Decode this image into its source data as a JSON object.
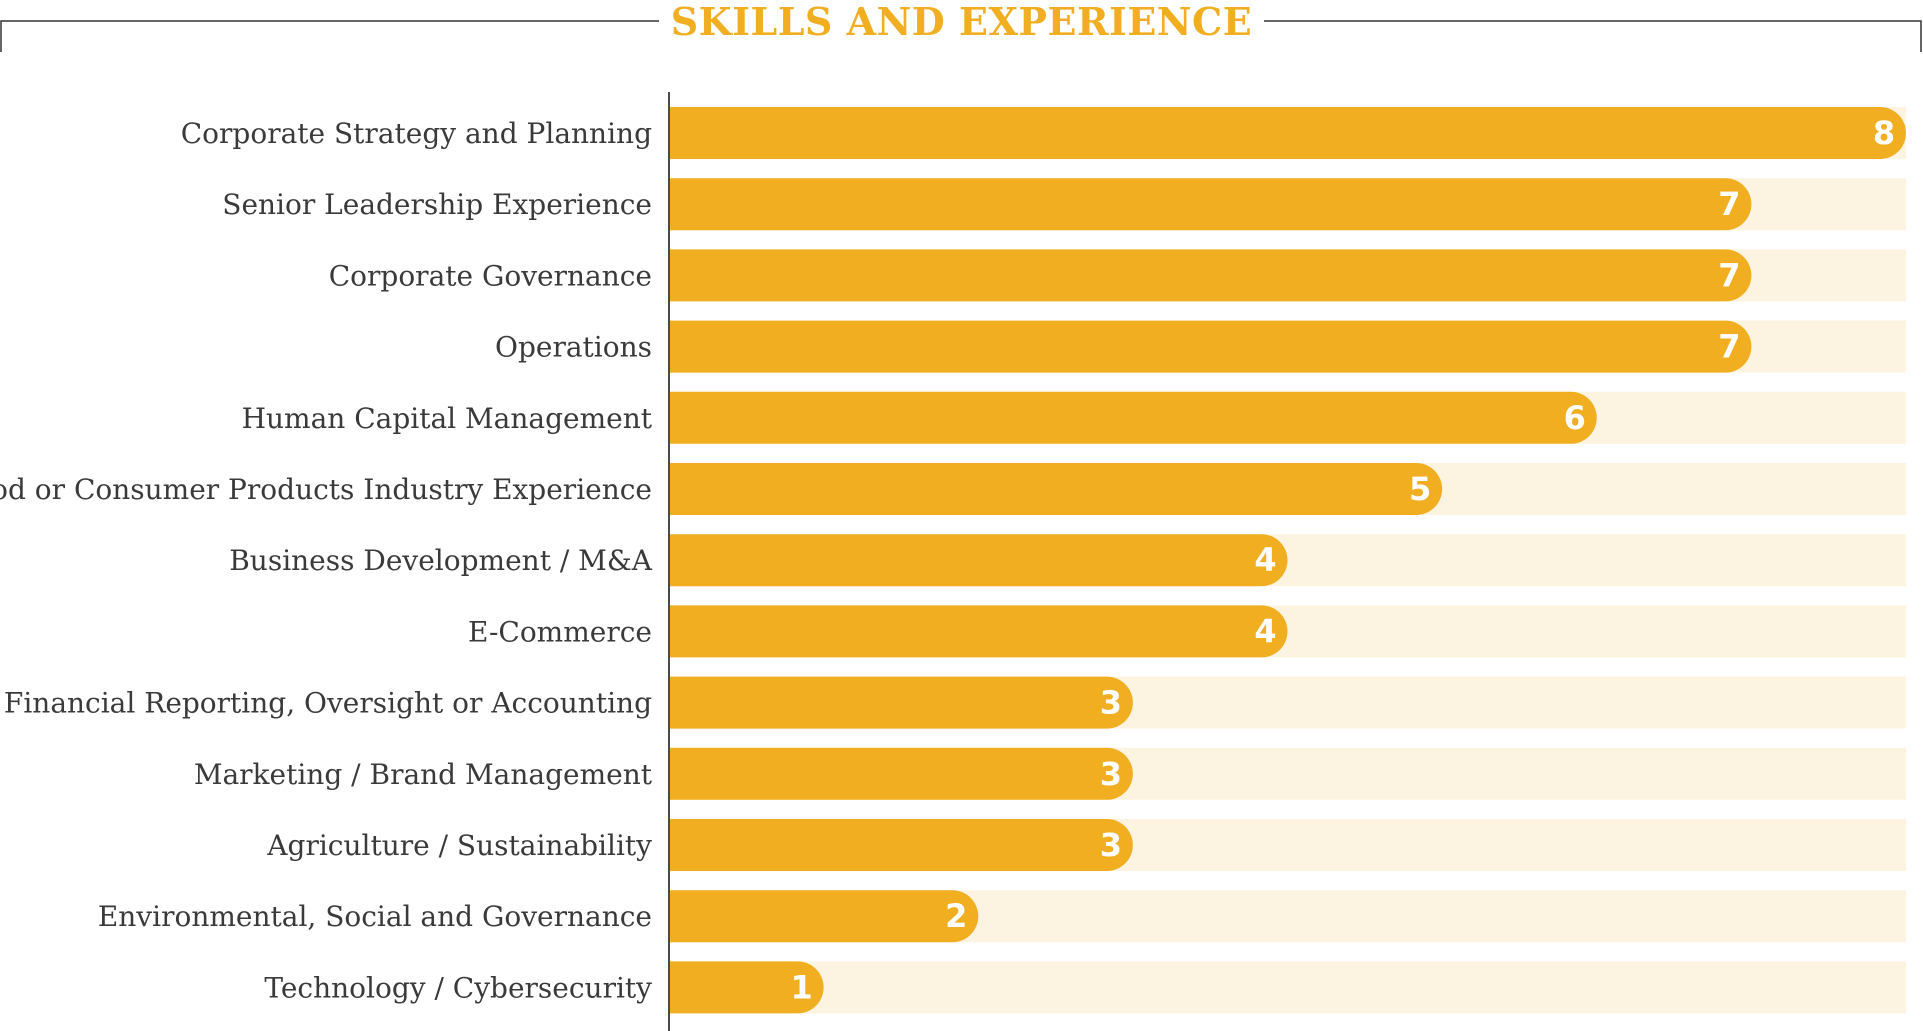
{
  "chart_data": {
    "type": "bar",
    "orientation": "horizontal",
    "title": "SKILLS AND EXPERIENCE",
    "xlabel": "",
    "ylabel": "",
    "xlim": [
      0,
      8
    ],
    "grid": false,
    "legend": "none",
    "categories": [
      "Corporate Strategy and Planning",
      "Senior Leadership Experience",
      "Corporate Governance",
      "Operations",
      "Human Capital Management",
      "Food or Consumer Products Industry Experience",
      "Business Development / M&A",
      "E-Commerce",
      "Financial Reporting, Oversight or Accounting",
      "Marketing / Brand Management",
      "Agriculture / Sustainability",
      "Environmental, Social and Governance",
      "Technology / Cybersecurity"
    ],
    "values": [
      8,
      7,
      7,
      7,
      6,
      5,
      4,
      4,
      3,
      3,
      3,
      2,
      1
    ],
    "colors": {
      "bar": "#f0ae20",
      "track": "#fdf3e1",
      "title": "#f0ae20",
      "label": "#3a3a3a",
      "axis": "#4a4a4a",
      "frame": "#333333"
    }
  }
}
